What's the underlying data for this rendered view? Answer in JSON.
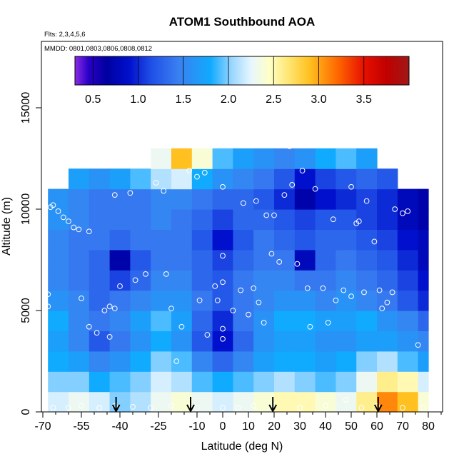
{
  "chart_data": {
    "type": "heatmap",
    "title": "ATOM1 Southbound AOA",
    "subtitle_flights": "Flts: 2,3,4,5,6",
    "subtitle_dates": "MMDD: 0801,0803,0806,0808,0812",
    "xlabel": "Latitude (deg N)",
    "ylabel": "Altitude (m)",
    "xlim": [
      -70,
      85
    ],
    "ylim": [
      0,
      17500
    ],
    "x_ticks": [
      -70,
      -55,
      -40,
      -25,
      -10,
      0,
      10,
      20,
      30,
      40,
      50,
      60,
      70,
      80
    ],
    "x_minor_ticks": [
      -65,
      -60,
      -50,
      -45,
      -35,
      -30,
      -20,
      -15,
      -5,
      5,
      15,
      25,
      35,
      45,
      55,
      65,
      75,
      85
    ],
    "y_ticks": [
      0,
      5000,
      10000,
      15000
    ],
    "colorbar": {
      "range": [
        0.3,
        4.0
      ],
      "ticks": [
        0.5,
        1.0,
        1.5,
        2.0,
        2.5,
        3.0,
        3.5
      ],
      "stops": [
        {
          "v": 0.3,
          "c": "#8a2be2"
        },
        {
          "v": 0.45,
          "c": "#2a00c8"
        },
        {
          "v": 0.65,
          "c": "#0000a0"
        },
        {
          "v": 0.9,
          "c": "#0010cc"
        },
        {
          "v": 1.15,
          "c": "#2050e8"
        },
        {
          "v": 1.45,
          "c": "#3a80f0"
        },
        {
          "v": 1.8,
          "c": "#10aaff"
        },
        {
          "v": 2.05,
          "c": "#a0d8ff"
        },
        {
          "v": 2.25,
          "c": "#e6f6ff"
        },
        {
          "v": 2.45,
          "c": "#ffffc8"
        },
        {
          "v": 2.65,
          "c": "#ffe878"
        },
        {
          "v": 2.9,
          "c": "#ffc020"
        },
        {
          "v": 3.2,
          "c": "#ff6a00"
        },
        {
          "v": 3.5,
          "c": "#e81000"
        },
        {
          "v": 3.75,
          "c": "#c00000"
        },
        {
          "v": 4.0,
          "c": "#a01818"
        }
      ]
    },
    "grid_lat_bins": [
      -68,
      -60,
      -52,
      -44,
      -36,
      -28,
      -20,
      -12,
      -4,
      4,
      12,
      20,
      28,
      36,
      44,
      52,
      60,
      68,
      76,
      80
    ],
    "grid_alt_bins": [
      0,
      1000,
      2000,
      3000,
      4000,
      5000,
      6000,
      7000,
      8000,
      9000,
      10000,
      11000,
      12000,
      13000
    ],
    "aoa_grid": [
      [
        2.2,
        2.3,
        2.2,
        2.0,
        2.1,
        2.3,
        2.4,
        2.3,
        2.2,
        2.3,
        2.4,
        2.5,
        2.5,
        2.4,
        2.3,
        2.6,
        3.1,
        2.9,
        2.4
      ],
      [
        2.0,
        2.0,
        1.8,
        1.9,
        2.0,
        2.2,
        2.1,
        1.9,
        1.8,
        1.9,
        2.0,
        2.1,
        2.0,
        1.9,
        2.0,
        2.3,
        2.6,
        2.5,
        2.2
      ],
      [
        1.8,
        1.7,
        1.5,
        1.6,
        1.8,
        2.0,
        1.9,
        1.5,
        1.3,
        1.5,
        1.7,
        1.8,
        1.8,
        1.7,
        1.8,
        2.0,
        2.1,
        1.9,
        1.7
      ],
      [
        1.7,
        1.5,
        1.2,
        1.4,
        1.6,
        1.8,
        1.6,
        1.2,
        0.9,
        1.3,
        1.6,
        1.7,
        1.7,
        1.6,
        1.6,
        1.7,
        1.7,
        1.6,
        1.5
      ],
      [
        1.8,
        1.5,
        1.4,
        1.5,
        1.7,
        1.9,
        1.7,
        1.3,
        1.0,
        1.4,
        1.6,
        1.8,
        1.8,
        1.7,
        1.7,
        1.8,
        1.6,
        1.5,
        1.3
      ],
      [
        1.6,
        1.5,
        1.3,
        1.4,
        1.5,
        1.6,
        1.6,
        1.4,
        1.2,
        1.4,
        1.5,
        1.6,
        1.6,
        1.5,
        1.6,
        1.5,
        1.4,
        1.2,
        1.0
      ],
      [
        1.5,
        1.4,
        1.3,
        1.1,
        1.3,
        1.5,
        1.5,
        1.3,
        1.2,
        1.4,
        1.5,
        1.5,
        1.4,
        1.4,
        1.5,
        1.4,
        1.3,
        1.1,
        0.9
      ],
      [
        1.5,
        1.4,
        1.3,
        0.7,
        1.2,
        1.4,
        1.4,
        1.3,
        1.1,
        1.3,
        1.4,
        1.4,
        0.8,
        1.3,
        1.4,
        1.3,
        1.2,
        1.0,
        0.8
      ],
      [
        1.5,
        1.4,
        1.4,
        1.3,
        1.4,
        1.4,
        1.4,
        1.2,
        0.9,
        1.2,
        1.4,
        1.3,
        1.2,
        1.3,
        1.3,
        1.2,
        1.1,
        0.9,
        0.8
      ],
      [
        1.6,
        1.5,
        1.4,
        1.4,
        1.4,
        1.5,
        1.4,
        1.3,
        1.1,
        1.3,
        1.3,
        1.2,
        1.1,
        1.2,
        1.2,
        1.1,
        1.0,
        0.8,
        0.7
      ],
      [
        1.6,
        1.5,
        1.4,
        1.4,
        1.4,
        1.5,
        1.5,
        1.4,
        1.3,
        1.3,
        1.2,
        1.0,
        0.7,
        0.9,
        1.0,
        1.1,
        1.0,
        0.8,
        0.7
      ],
      [
        null,
        1.7,
        1.6,
        1.7,
        1.9,
        2.1,
        2.2,
        1.8,
        1.6,
        1.5,
        1.4,
        1.2,
        0.9,
        1.1,
        1.2,
        1.3,
        1.2,
        null,
        null
      ],
      [
        null,
        null,
        null,
        null,
        null,
        2.3,
        2.9,
        2.4,
        1.9,
        1.7,
        1.6,
        1.5,
        1.6,
        1.8,
        1.9,
        1.7,
        null,
        null,
        null
      ]
    ]
  }
}
